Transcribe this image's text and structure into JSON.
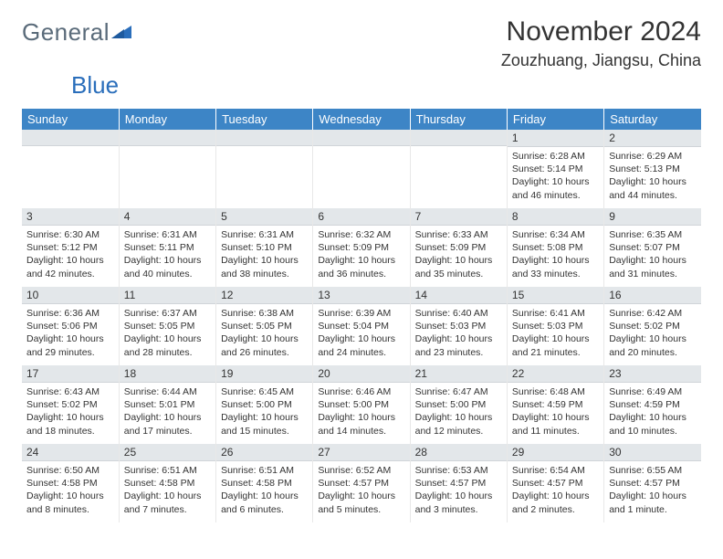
{
  "logo": {
    "part1": "General",
    "part2": "Blue"
  },
  "title": "November 2024",
  "location": "Zouzhuang, Jiangsu, China",
  "colors": {
    "header_bg": "#3d85c6",
    "header_text": "#ffffff",
    "daynum_bg": "#e3e7ea",
    "text": "#333333",
    "logo_gray": "#5a6b7a",
    "logo_blue": "#2a6ebb"
  },
  "weekdays": [
    "Sunday",
    "Monday",
    "Tuesday",
    "Wednesday",
    "Thursday",
    "Friday",
    "Saturday"
  ],
  "grid": [
    [
      null,
      null,
      null,
      null,
      null,
      {
        "n": "1",
        "sunrise": "Sunrise: 6:28 AM",
        "sunset": "Sunset: 5:14 PM",
        "daylight": "Daylight: 10 hours and 46 minutes."
      },
      {
        "n": "2",
        "sunrise": "Sunrise: 6:29 AM",
        "sunset": "Sunset: 5:13 PM",
        "daylight": "Daylight: 10 hours and 44 minutes."
      }
    ],
    [
      {
        "n": "3",
        "sunrise": "Sunrise: 6:30 AM",
        "sunset": "Sunset: 5:12 PM",
        "daylight": "Daylight: 10 hours and 42 minutes."
      },
      {
        "n": "4",
        "sunrise": "Sunrise: 6:31 AM",
        "sunset": "Sunset: 5:11 PM",
        "daylight": "Daylight: 10 hours and 40 minutes."
      },
      {
        "n": "5",
        "sunrise": "Sunrise: 6:31 AM",
        "sunset": "Sunset: 5:10 PM",
        "daylight": "Daylight: 10 hours and 38 minutes."
      },
      {
        "n": "6",
        "sunrise": "Sunrise: 6:32 AM",
        "sunset": "Sunset: 5:09 PM",
        "daylight": "Daylight: 10 hours and 36 minutes."
      },
      {
        "n": "7",
        "sunrise": "Sunrise: 6:33 AM",
        "sunset": "Sunset: 5:09 PM",
        "daylight": "Daylight: 10 hours and 35 minutes."
      },
      {
        "n": "8",
        "sunrise": "Sunrise: 6:34 AM",
        "sunset": "Sunset: 5:08 PM",
        "daylight": "Daylight: 10 hours and 33 minutes."
      },
      {
        "n": "9",
        "sunrise": "Sunrise: 6:35 AM",
        "sunset": "Sunset: 5:07 PM",
        "daylight": "Daylight: 10 hours and 31 minutes."
      }
    ],
    [
      {
        "n": "10",
        "sunrise": "Sunrise: 6:36 AM",
        "sunset": "Sunset: 5:06 PM",
        "daylight": "Daylight: 10 hours and 29 minutes."
      },
      {
        "n": "11",
        "sunrise": "Sunrise: 6:37 AM",
        "sunset": "Sunset: 5:05 PM",
        "daylight": "Daylight: 10 hours and 28 minutes."
      },
      {
        "n": "12",
        "sunrise": "Sunrise: 6:38 AM",
        "sunset": "Sunset: 5:05 PM",
        "daylight": "Daylight: 10 hours and 26 minutes."
      },
      {
        "n": "13",
        "sunrise": "Sunrise: 6:39 AM",
        "sunset": "Sunset: 5:04 PM",
        "daylight": "Daylight: 10 hours and 24 minutes."
      },
      {
        "n": "14",
        "sunrise": "Sunrise: 6:40 AM",
        "sunset": "Sunset: 5:03 PM",
        "daylight": "Daylight: 10 hours and 23 minutes."
      },
      {
        "n": "15",
        "sunrise": "Sunrise: 6:41 AM",
        "sunset": "Sunset: 5:03 PM",
        "daylight": "Daylight: 10 hours and 21 minutes."
      },
      {
        "n": "16",
        "sunrise": "Sunrise: 6:42 AM",
        "sunset": "Sunset: 5:02 PM",
        "daylight": "Daylight: 10 hours and 20 minutes."
      }
    ],
    [
      {
        "n": "17",
        "sunrise": "Sunrise: 6:43 AM",
        "sunset": "Sunset: 5:02 PM",
        "daylight": "Daylight: 10 hours and 18 minutes."
      },
      {
        "n": "18",
        "sunrise": "Sunrise: 6:44 AM",
        "sunset": "Sunset: 5:01 PM",
        "daylight": "Daylight: 10 hours and 17 minutes."
      },
      {
        "n": "19",
        "sunrise": "Sunrise: 6:45 AM",
        "sunset": "Sunset: 5:00 PM",
        "daylight": "Daylight: 10 hours and 15 minutes."
      },
      {
        "n": "20",
        "sunrise": "Sunrise: 6:46 AM",
        "sunset": "Sunset: 5:00 PM",
        "daylight": "Daylight: 10 hours and 14 minutes."
      },
      {
        "n": "21",
        "sunrise": "Sunrise: 6:47 AM",
        "sunset": "Sunset: 5:00 PM",
        "daylight": "Daylight: 10 hours and 12 minutes."
      },
      {
        "n": "22",
        "sunrise": "Sunrise: 6:48 AM",
        "sunset": "Sunset: 4:59 PM",
        "daylight": "Daylight: 10 hours and 11 minutes."
      },
      {
        "n": "23",
        "sunrise": "Sunrise: 6:49 AM",
        "sunset": "Sunset: 4:59 PM",
        "daylight": "Daylight: 10 hours and 10 minutes."
      }
    ],
    [
      {
        "n": "24",
        "sunrise": "Sunrise: 6:50 AM",
        "sunset": "Sunset: 4:58 PM",
        "daylight": "Daylight: 10 hours and 8 minutes."
      },
      {
        "n": "25",
        "sunrise": "Sunrise: 6:51 AM",
        "sunset": "Sunset: 4:58 PM",
        "daylight": "Daylight: 10 hours and 7 minutes."
      },
      {
        "n": "26",
        "sunrise": "Sunrise: 6:51 AM",
        "sunset": "Sunset: 4:58 PM",
        "daylight": "Daylight: 10 hours and 6 minutes."
      },
      {
        "n": "27",
        "sunrise": "Sunrise: 6:52 AM",
        "sunset": "Sunset: 4:57 PM",
        "daylight": "Daylight: 10 hours and 5 minutes."
      },
      {
        "n": "28",
        "sunrise": "Sunrise: 6:53 AM",
        "sunset": "Sunset: 4:57 PM",
        "daylight": "Daylight: 10 hours and 3 minutes."
      },
      {
        "n": "29",
        "sunrise": "Sunrise: 6:54 AM",
        "sunset": "Sunset: 4:57 PM",
        "daylight": "Daylight: 10 hours and 2 minutes."
      },
      {
        "n": "30",
        "sunrise": "Sunrise: 6:55 AM",
        "sunset": "Sunset: 4:57 PM",
        "daylight": "Daylight: 10 hours and 1 minute."
      }
    ]
  ]
}
